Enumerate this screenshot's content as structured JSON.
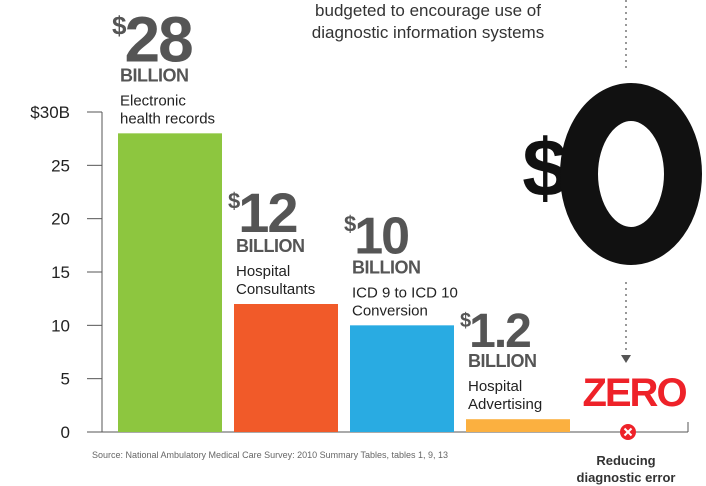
{
  "chart_data": {
    "type": "bar",
    "y_axis": {
      "tick_labels": [
        "0",
        "5",
        "10",
        "15",
        "20",
        "25",
        "$30B"
      ],
      "ylim": [
        0,
        30
      ]
    },
    "grid": false,
    "bars": [
      {
        "amount": "$28",
        "unit": "BILLION",
        "label_lines": [
          "Electronic",
          "health records"
        ],
        "value": 28,
        "color": "#8dc63f"
      },
      {
        "amount": "$12",
        "unit": "BILLION",
        "label_lines": [
          "Hospital",
          "Consultants"
        ],
        "value": 12,
        "color": "#f15a29"
      },
      {
        "amount": "$10",
        "unit": "BILLION",
        "label_lines": [
          "ICD 9 to ICD 10",
          "Conversion"
        ],
        "value": 10,
        "color": "#29abe2"
      },
      {
        "amount": "$1.2",
        "unit": "BILLION",
        "label_lines": [
          "Hospital",
          "Advertising"
        ],
        "value": 1.2,
        "color": "#fbb040"
      },
      {
        "amount": "$0",
        "word": "ZERO",
        "label_lines": [
          "Reducing",
          "diagnostic error"
        ],
        "value": 0,
        "color": "#ee2229"
      }
    ],
    "annotation_lines": [
      "budgeted to encourage use of",
      "diagnostic information systems"
    ],
    "source": "Source: National Ambulatory Medical Care Survey: 2010 Summary Tables, tables 1, 9, 13"
  }
}
